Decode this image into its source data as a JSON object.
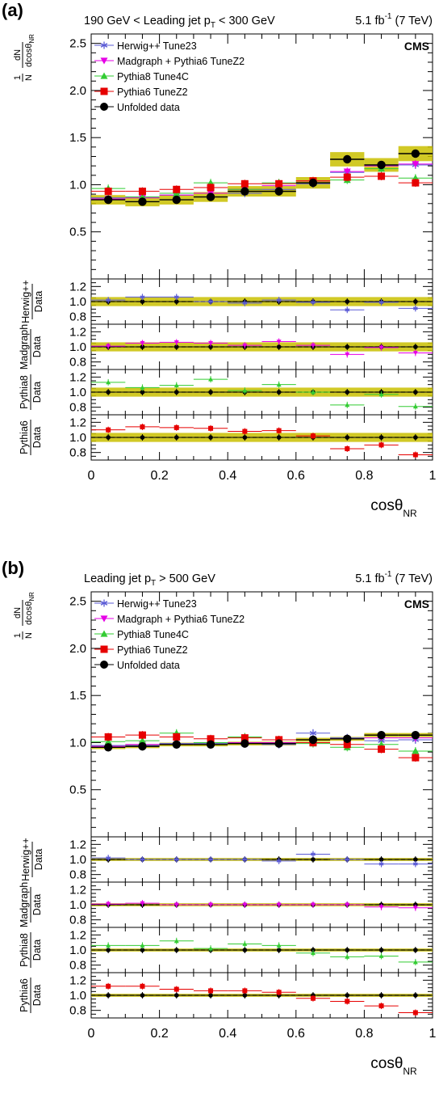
{
  "chart_data": [
    {
      "panel": "(a)",
      "type": "scatter",
      "condition": "190 GeV < Leading jet p",
      "condition_sub": "T",
      "condition_tail": " < 300 GeV",
      "lumi": "5.1 fb",
      "lumi_sup": "-1",
      "energy": " (7 TeV)",
      "experiment": "CMS",
      "xlabel": "cosθ",
      "xlabel_sub": "NR",
      "ylabel": "1/N dN/dcosθ",
      "ylabel_sub": "NR",
      "xlim": [
        0,
        1
      ],
      "ylim": [
        0,
        2.6
      ],
      "yticks": [
        "0.5",
        "1.0",
        "1.5",
        "2.0",
        "2.5"
      ],
      "xticks": [
        "0",
        "0.2",
        "0.4",
        "0.6",
        "0.8",
        "1"
      ],
      "x": [
        0.05,
        0.15,
        0.25,
        0.35,
        0.45,
        0.55,
        0.65,
        0.75,
        0.85,
        0.95
      ],
      "series": [
        {
          "name": "Herwig++ Tune23",
          "color": "#5b5bd6",
          "marker": "star",
          "values": [
            0.86,
            0.87,
            0.89,
            0.87,
            0.91,
            0.95,
            1.01,
            1.13,
            1.2,
            1.21
          ]
        },
        {
          "name": "Madgraph + Pythia6 TuneZ2",
          "color": "#e600e6",
          "marker": "tri-down",
          "values": [
            0.85,
            0.86,
            0.89,
            0.91,
            0.95,
            0.99,
            1.04,
            1.14,
            1.2,
            1.22
          ]
        },
        {
          "name": "Pythia8 Tune4C",
          "color": "#33cc33",
          "marker": "tri-up",
          "values": [
            0.96,
            0.87,
            0.91,
            1.02,
            0.95,
            1.02,
            1.02,
            1.05,
            1.17,
            1.07
          ]
        },
        {
          "name": "Pythia6 TuneZ2",
          "color": "#e60000",
          "marker": "square",
          "values": [
            0.93,
            0.93,
            0.95,
            0.97,
            1.01,
            1.01,
            1.04,
            1.08,
            1.09,
            1.02
          ]
        },
        {
          "name": "Unfolded data",
          "color": "#000000",
          "marker": "circle",
          "values": [
            0.84,
            0.82,
            0.84,
            0.87,
            0.93,
            0.93,
            1.02,
            1.27,
            1.21,
            1.33
          ]
        }
      ],
      "ratio_panels": [
        {
          "label_top": "Herwig++",
          "label_bottom": "Data",
          "color": "#5b5bd6",
          "marker": "star",
          "values": [
            1.02,
            1.06,
            1.06,
            1.0,
            0.98,
            1.02,
            0.99,
            0.89,
            0.99,
            0.91
          ]
        },
        {
          "label_top": "Madgraph",
          "label_bottom": "Data",
          "color": "#e600e6",
          "marker": "tri-down",
          "values": [
            1.01,
            1.05,
            1.06,
            1.05,
            1.02,
            1.07,
            1.02,
            0.9,
            0.99,
            0.92
          ]
        },
        {
          "label_top": "Pythia8",
          "label_bottom": "Data",
          "color": "#33cc33",
          "marker": "tri-up",
          "values": [
            1.13,
            1.06,
            1.09,
            1.17,
            1.02,
            1.1,
            1.0,
            0.83,
            0.97,
            0.81
          ]
        },
        {
          "label_top": "Pythia6",
          "label_bottom": "Data",
          "color": "#e60000",
          "marker": "square",
          "values": [
            1.1,
            1.14,
            1.13,
            1.12,
            1.08,
            1.09,
            1.02,
            0.85,
            0.9,
            0.77
          ]
        }
      ],
      "ratio_ylim": [
        0.7,
        1.3
      ],
      "ratio_yticks": [
        "0.8",
        "1.0",
        "1.2"
      ],
      "data_band": 0.06
    },
    {
      "panel": "(b)",
      "type": "scatter",
      "condition": "Leading jet p",
      "condition_sub": "T",
      "condition_tail": " > 500 GeV",
      "lumi": "5.1 fb",
      "lumi_sup": "-1",
      "energy": " (7 TeV)",
      "experiment": "CMS",
      "xlabel": "cosθ",
      "xlabel_sub": "NR",
      "ylabel": "1/N dN/dcosθ",
      "ylabel_sub": "NR",
      "xlim": [
        0,
        1
      ],
      "ylim": [
        0,
        2.6
      ],
      "yticks": [
        "0.5",
        "1.0",
        "1.5",
        "2.0",
        "2.5"
      ],
      "xticks": [
        "0",
        "0.2",
        "0.4",
        "0.6",
        "0.8",
        "1"
      ],
      "x": [
        0.05,
        0.15,
        0.25,
        0.35,
        0.45,
        0.55,
        0.65,
        0.75,
        0.85,
        0.95
      ],
      "series": [
        {
          "name": "Herwig++ Tune23",
          "color": "#5b5bd6",
          "marker": "star",
          "values": [
            0.97,
            0.97,
            0.99,
            0.99,
            1.0,
            0.98,
            1.1,
            1.05,
            1.02,
            1.03
          ]
        },
        {
          "name": "Madgraph + Pythia6 TuneZ2",
          "color": "#e600e6",
          "marker": "tri-down",
          "values": [
            0.96,
            0.98,
            0.98,
            1.0,
            1.0,
            1.0,
            1.03,
            1.04,
            1.05,
            1.05
          ]
        },
        {
          "name": "Pythia8 Tune4C",
          "color": "#33cc33",
          "marker": "tri-up",
          "values": [
            1.01,
            1.02,
            1.1,
            1.0,
            1.06,
            1.03,
            0.99,
            0.95,
            0.98,
            0.91
          ]
        },
        {
          "name": "Pythia6 TuneZ2",
          "color": "#e60000",
          "marker": "square",
          "values": [
            1.06,
            1.08,
            1.06,
            1.04,
            1.05,
            1.03,
            1.0,
            0.98,
            0.93,
            0.84
          ]
        },
        {
          "name": "Unfolded data",
          "color": "#000000",
          "marker": "circle",
          "values": [
            0.95,
            0.96,
            0.98,
            0.98,
            0.99,
            0.99,
            1.03,
            1.04,
            1.08,
            1.08
          ]
        }
      ],
      "ratio_panels": [
        {
          "label_top": "Herwig++",
          "label_bottom": "Data",
          "color": "#5b5bd6",
          "marker": "star",
          "values": [
            1.02,
            1.0,
            1.0,
            1.0,
            1.0,
            0.98,
            1.07,
            1.0,
            0.94,
            0.94
          ]
        },
        {
          "label_top": "Madgraph",
          "label_bottom": "Data",
          "color": "#e600e6",
          "marker": "tri-down",
          "values": [
            1.01,
            1.02,
            1.0,
            1.0,
            1.0,
            1.0,
            1.0,
            1.0,
            0.97,
            0.96
          ]
        },
        {
          "label_top": "Pythia8",
          "label_bottom": "Data",
          "color": "#33cc33",
          "marker": "tri-up",
          "values": [
            1.06,
            1.06,
            1.12,
            1.02,
            1.08,
            1.06,
            0.96,
            0.91,
            0.92,
            0.84
          ]
        },
        {
          "label_top": "Pythia6",
          "label_bottom": "Data",
          "color": "#e60000",
          "marker": "square",
          "values": [
            1.12,
            1.12,
            1.08,
            1.06,
            1.06,
            1.04,
            0.96,
            0.92,
            0.86,
            0.77
          ]
        }
      ],
      "ratio_ylim": [
        0.7,
        1.3
      ],
      "ratio_yticks": [
        "0.8",
        "1.0",
        "1.2"
      ],
      "data_band": 0.02
    }
  ]
}
